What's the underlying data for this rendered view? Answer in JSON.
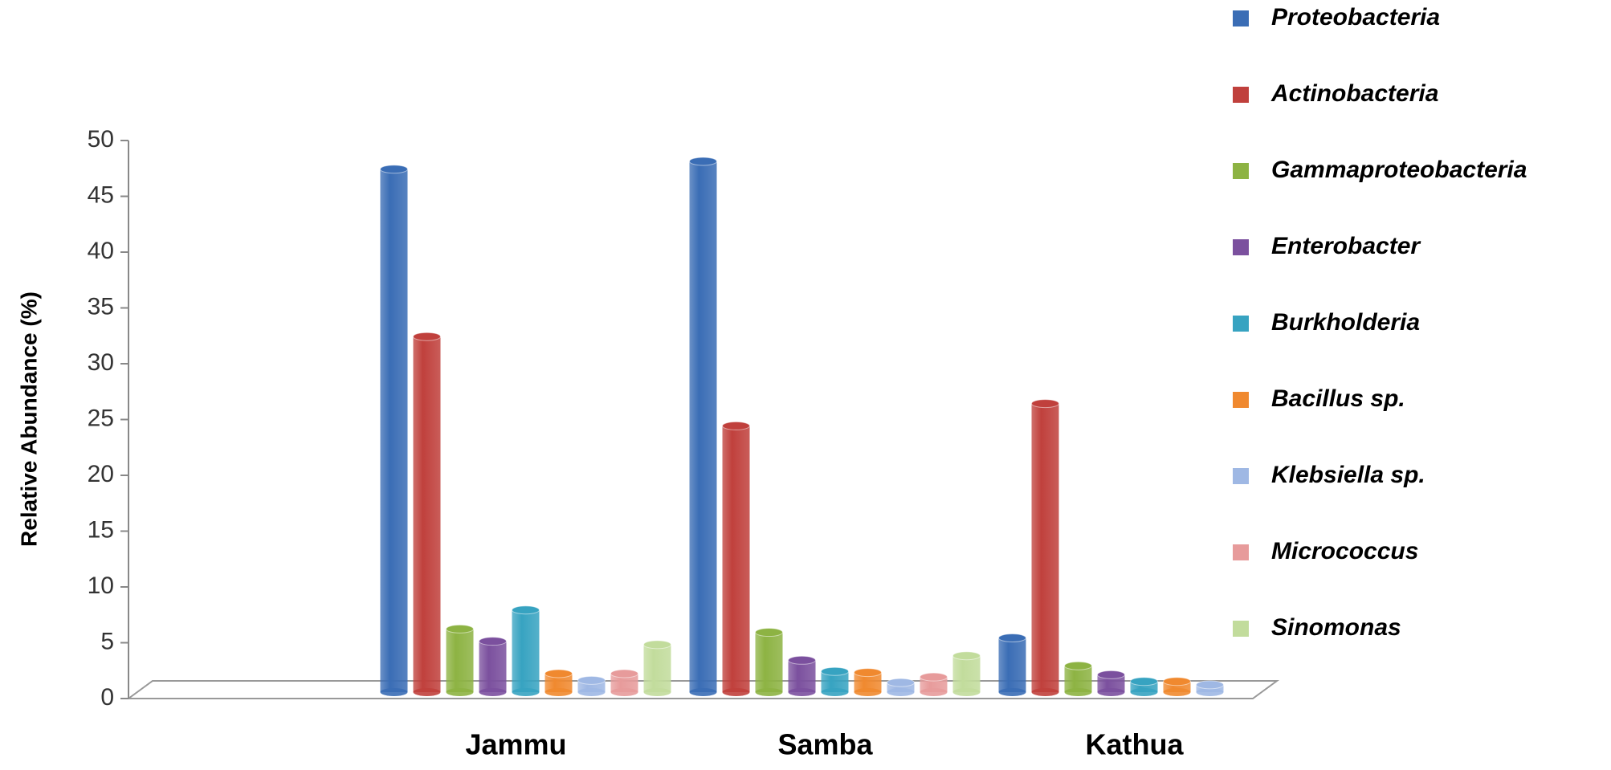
{
  "chart_data": {
    "type": "bar",
    "y_label": "Relative Abundance (%)",
    "categories": [
      null,
      "Jammu",
      "Samba",
      "Kathua"
    ],
    "series": [
      {
        "name": "Proteobacteria",
        "color": "#3a6db5",
        "values": [
          null,
          47,
          47.7,
          5
        ]
      },
      {
        "name": "Actinobacteria",
        "color": "#c0403c",
        "values": [
          null,
          32,
          24,
          26
        ]
      },
      {
        "name": "Gammaproteobacteria",
        "color": "#8db343",
        "values": [
          null,
          5.8,
          5.5,
          2.5
        ]
      },
      {
        "name": "Enterobacter",
        "color": "#7b509e",
        "values": [
          null,
          4.7,
          3,
          1.7
        ]
      },
      {
        "name": "Burkholderia",
        "color": "#37a3c1",
        "values": [
          null,
          7.5,
          2,
          1.1
        ]
      },
      {
        "name": "Bacillus sp.",
        "color": "#f0892f",
        "values": [
          null,
          1.8,
          1.9,
          1.1
        ]
      },
      {
        "name": "Klebsiella sp.",
        "color": "#9fb8e4",
        "values": [
          null,
          1.2,
          1,
          0.8
        ]
      },
      {
        "name": "Micrococcus",
        "color": "#e79b9b",
        "values": [
          null,
          1.8,
          1.5,
          null
        ]
      },
      {
        "name": "Sinomonas",
        "color": "#c2dc9c",
        "values": [
          null,
          4.4,
          3.4,
          null
        ]
      }
    ],
    "ylim": [
      0,
      50
    ],
    "yticks": [
      0,
      5,
      10,
      15,
      20,
      25,
      30,
      35,
      40,
      45,
      50
    ],
    "legend": "right",
    "grid": false
  }
}
